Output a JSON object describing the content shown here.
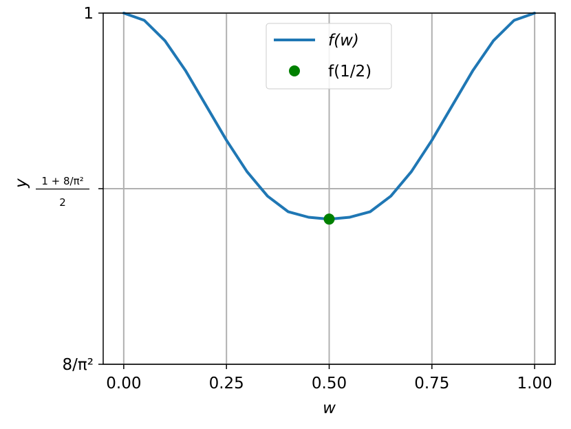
{
  "chart_data": {
    "type": "line",
    "title": "",
    "xlabel": "w",
    "ylabel": "y",
    "xlim": [
      -0.05,
      1.05
    ],
    "ylim": [
      0.8106,
      1.0
    ],
    "xticks": [
      {
        "value": 0.0,
        "label": "0.00"
      },
      {
        "value": 0.25,
        "label": "0.25"
      },
      {
        "value": 0.5,
        "label": "0.50"
      },
      {
        "value": 0.75,
        "label": "0.75"
      },
      {
        "value": 1.0,
        "label": "1.00"
      }
    ],
    "yticks": [
      {
        "value": 0.8106,
        "label": "8/π²"
      },
      {
        "value": 0.9053,
        "label_numerator": "1 + 8/π²",
        "label_denominator": "2"
      },
      {
        "value": 1.0,
        "label": "1"
      }
    ],
    "grid": true,
    "legend_position": "top-center",
    "series": [
      {
        "name": "f(w)",
        "kind": "line",
        "color": "#1f77b4",
        "x": [
          0.0,
          0.05,
          0.1,
          0.15,
          0.2,
          0.25,
          0.3,
          0.35,
          0.4,
          0.45,
          0.5,
          0.55,
          0.6,
          0.65,
          0.7,
          0.75,
          0.8,
          0.85,
          0.9,
          0.95,
          1.0
        ],
        "y": [
          1.0,
          0.9961,
          0.9852,
          0.9691,
          0.9503,
          0.9314,
          0.9145,
          0.9013,
          0.8929,
          0.8899,
          0.8889,
          0.8899,
          0.8929,
          0.9013,
          0.9145,
          0.9314,
          0.9503,
          0.9691,
          0.9852,
          0.9961,
          1.0
        ]
      },
      {
        "name": "f(1/2)",
        "kind": "scatter",
        "color": "#008000",
        "x": [
          0.5
        ],
        "y": [
          0.8889
        ]
      }
    ]
  }
}
